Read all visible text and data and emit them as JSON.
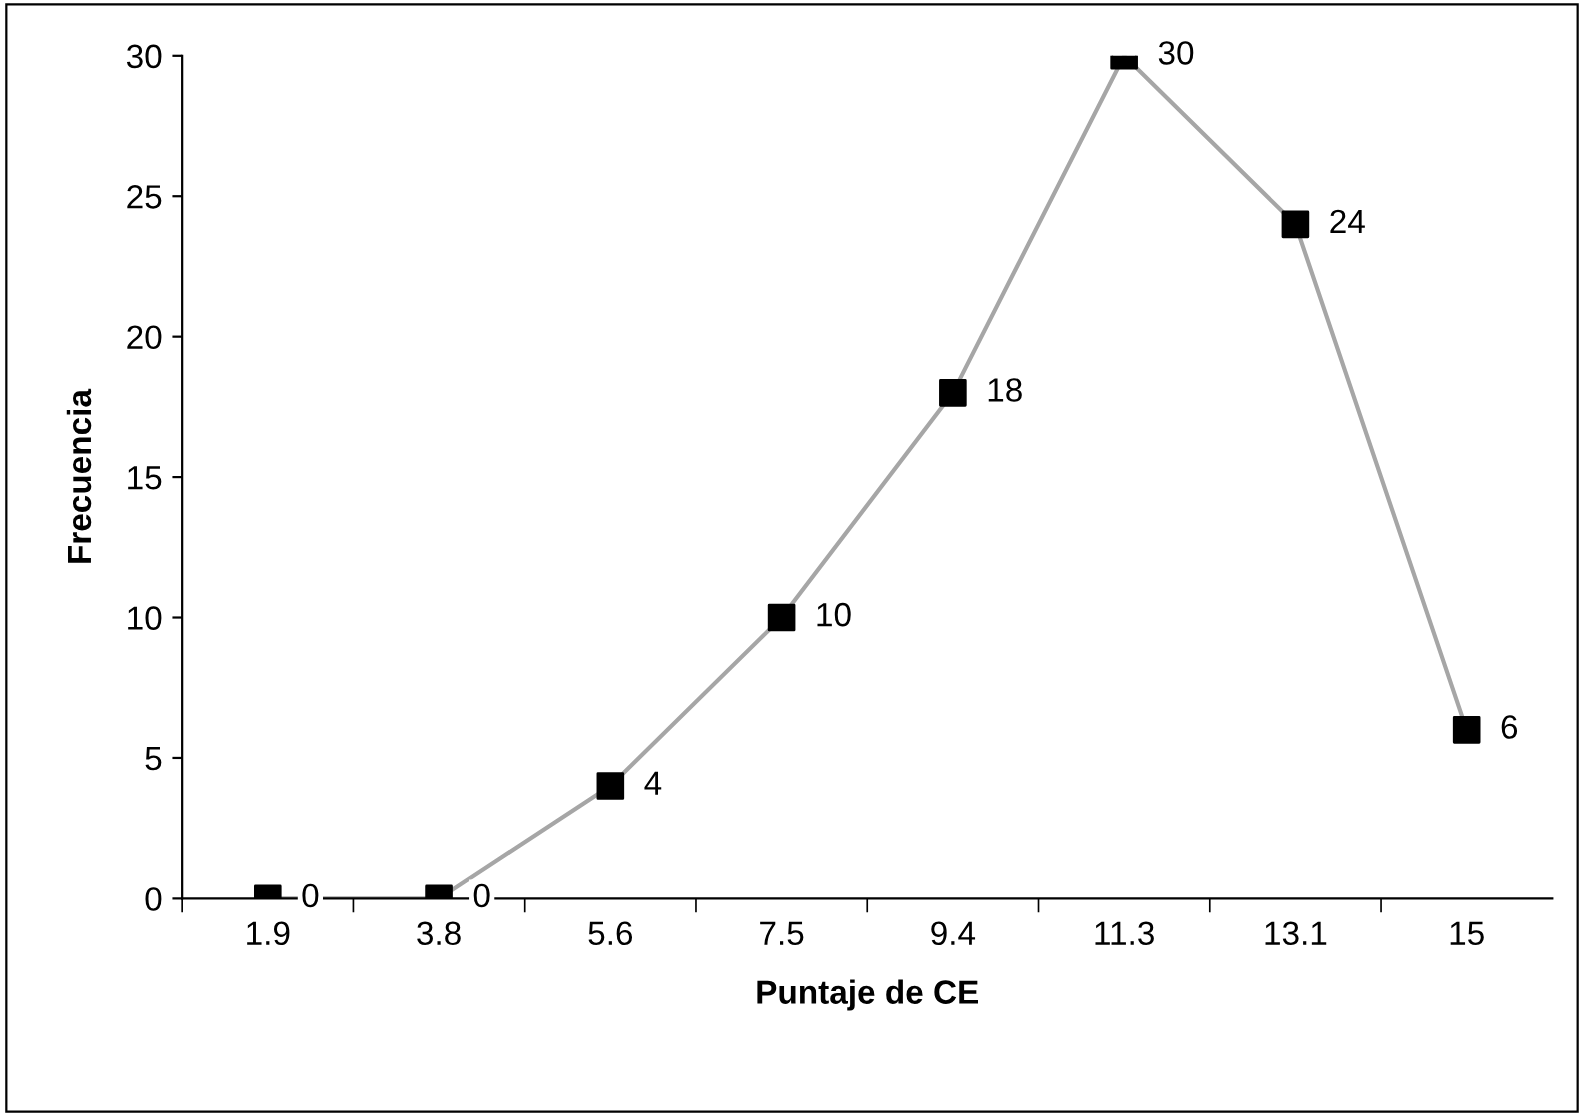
{
  "chart_data": {
    "type": "line",
    "xlabel": "Puntaje de CE",
    "ylabel": "Frecuencia",
    "categories": [
      "1.9",
      "3.8",
      "5.6",
      "7.5",
      "9.4",
      "11.3",
      "13.1",
      "15"
    ],
    "series": [
      {
        "color": "#a6a6a6",
        "colors": [
          "#000000",
          "#000000",
          "#000000",
          "#000000",
          "#000000",
          "#000000",
          "#000000",
          "#000000"
        ],
        "values": [
          0,
          0,
          4,
          10,
          18,
          30,
          24,
          6
        ]
      }
    ],
    "ylim": [
      0,
      30
    ],
    "yticks": [
      0,
      5,
      10,
      15,
      20,
      25,
      30
    ],
    "grid": false,
    "marker": "square",
    "line_style": "solid",
    "data_labels": true
  }
}
